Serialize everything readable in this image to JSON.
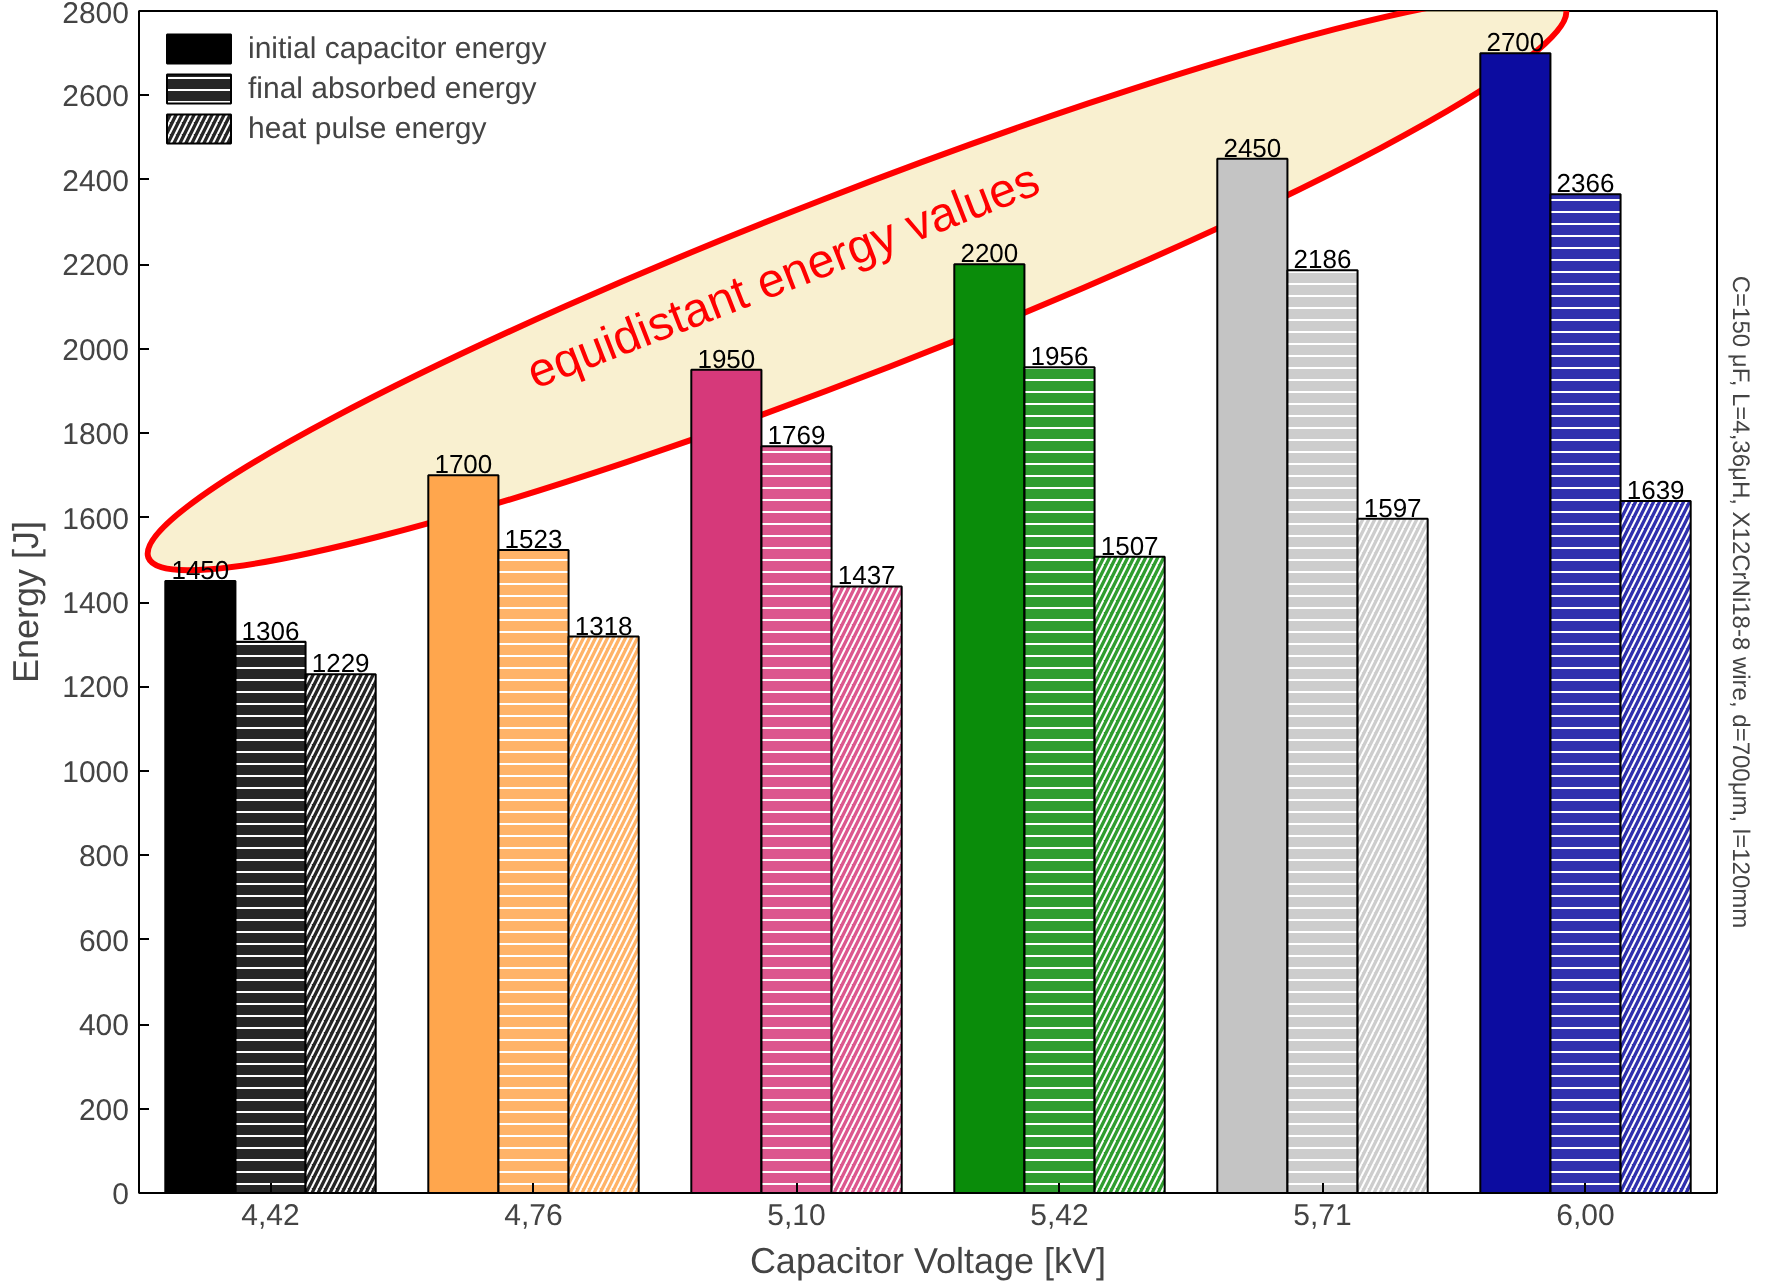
{
  "chart_data": {
    "type": "bar",
    "xlabel": "Capacitor Voltage [kV]",
    "ylabel": "Energy [J]",
    "categories": [
      "4,42",
      "4,76",
      "5,10",
      "5,42",
      "5,71",
      "6,00"
    ],
    "series": [
      {
        "name": "initial capacitor energy",
        "colors": [
          "#000000",
          "#ffa64d",
          "#d6397a",
          "#0a8c0a",
          "#c4c4c4",
          "#0c0ca0"
        ],
        "values": [
          1450,
          1700,
          1950,
          2200,
          2450,
          2700
        ]
      },
      {
        "name": "final absorbed energy",
        "colors": [
          "#000000",
          "#ffa64d",
          "#d6397a",
          "#0a8c0a",
          "#c4c4c4",
          "#0c0ca0"
        ],
        "values": [
          1306,
          1523,
          1769,
          1956,
          2186,
          2366
        ]
      },
      {
        "name": "heat pulse energy",
        "colors": [
          "#000000",
          "#ffa64d",
          "#d6397a",
          "#0a8c0a",
          "#c4c4c4",
          "#0c0ca0"
        ],
        "values": [
          1229,
          1318,
          1437,
          1507,
          1597,
          1639
        ]
      }
    ],
    "ylim": [
      0,
      2800
    ],
    "yticks": [
      0,
      200,
      400,
      600,
      800,
      1000,
      1200,
      1400,
      1600,
      1800,
      2000,
      2200,
      2400,
      2600,
      2800
    ],
    "data_labels": true,
    "grid": false,
    "legend": "top left",
    "annotations": [
      "equidistant energy values",
      "C=150 μF, L=4,36μH, X12CrNi18-8 wire, d=700μm, l=120mm"
    ]
  }
}
